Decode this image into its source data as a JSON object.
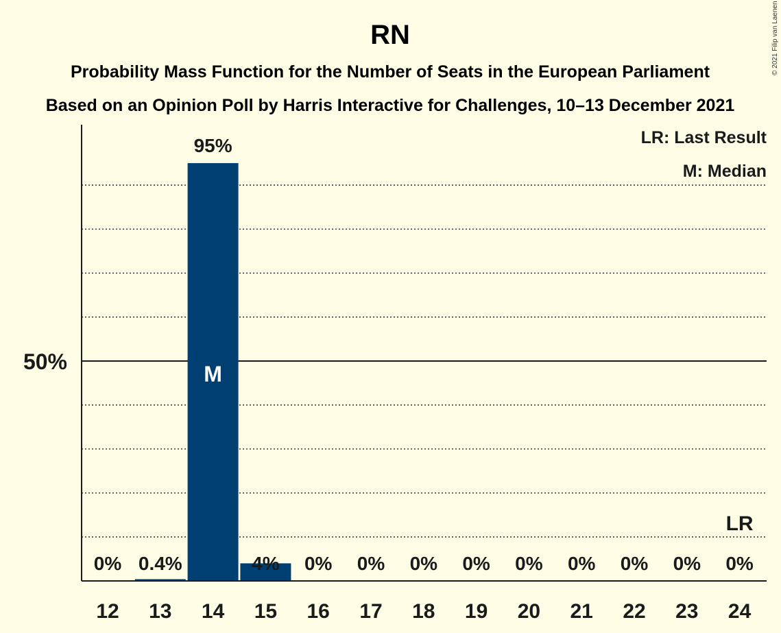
{
  "chart_data": {
    "type": "bar",
    "title": "RN",
    "subtitle_1": "Probability Mass Function for the Number of Seats in the European Parliament",
    "subtitle_2": "Based on an Opinion Poll by Harris Interactive for Challenges, 10–13 December 2021",
    "copyright": "© 2021 Filip van Laenen",
    "categories": [
      "12",
      "13",
      "14",
      "15",
      "16",
      "17",
      "18",
      "19",
      "20",
      "21",
      "22",
      "23",
      "24"
    ],
    "values": [
      0,
      0.4,
      95,
      4,
      0,
      0,
      0,
      0,
      0,
      0,
      0,
      0,
      0
    ],
    "value_labels": [
      "0%",
      "0.4%",
      "95%",
      "4%",
      "0%",
      "0%",
      "0%",
      "0%",
      "0%",
      "0%",
      "0%",
      "0%",
      "0%"
    ],
    "ylim": [
      0,
      100
    ],
    "y_ticks": [
      {
        "value": 50,
        "label": "50%"
      }
    ],
    "gridlines": [
      10,
      20,
      30,
      40,
      60,
      70,
      80,
      90
    ],
    "median_category": "14",
    "median_marker": "M",
    "last_result_category": "24",
    "last_result_marker": "LR",
    "legend": [
      "LR: Last Result",
      "M: Median"
    ],
    "legend_position": "top-right",
    "bar_color": "#003f72"
  }
}
